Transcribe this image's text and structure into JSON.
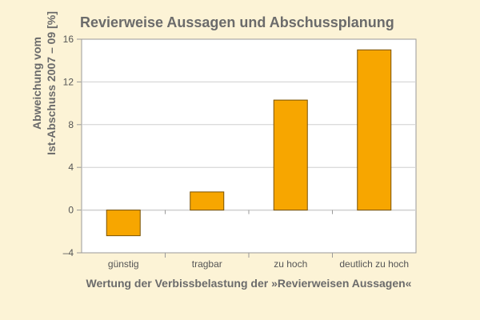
{
  "chart_data": {
    "type": "bar",
    "title": "Revierweise Aussagen und Abschussplanung",
    "xlabel": "Wertung der Verbissbelastung der »Revierweisen Aussagen«",
    "ylabel_lines": [
      "Abweichung vom",
      "Ist-Abschuss 2007 – 09 [%]"
    ],
    "categories": [
      "günstig",
      "tragbar",
      "zu hoch",
      "deutlich zu hoch"
    ],
    "values": [
      -2.4,
      1.7,
      10.3,
      15.0
    ],
    "ylim": [
      -4,
      16
    ],
    "yticks": [
      "16",
      "12",
      "8",
      "4",
      "0",
      "–4"
    ],
    "ytick_values": [
      16,
      12,
      8,
      4,
      0,
      -4
    ],
    "grid": true,
    "colors": {
      "bar_fill": "#f7a600",
      "bar_stroke": "#7a5200",
      "plot_bg": "#ffffff",
      "grid": "#cfcfcf",
      "page_bg": "#fcf3d6"
    }
  }
}
